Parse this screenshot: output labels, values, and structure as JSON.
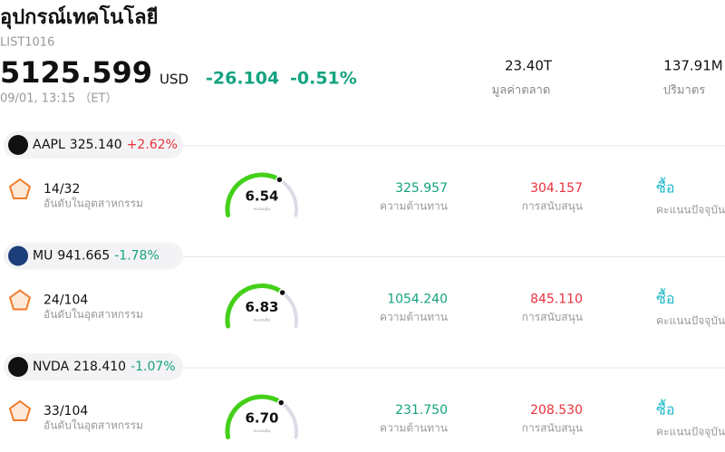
{
  "header": {
    "title": "อุปกรณ์เทคโนโลยี",
    "code": "LIST1016",
    "price": "5125.599",
    "currency": "USD",
    "change": "-26.104",
    "change_percent": "-0.51%",
    "time": "09/01, 13:15 （ET）",
    "stats": [
      {
        "value": "23.40T",
        "label": "มูลค่าตลาด"
      },
      {
        "value": "137.91M",
        "label": "ปริมาตร"
      }
    ]
  },
  "score_range": [
    0,
    10
  ],
  "stocks": [
    {
      "ticker": "AAPL",
      "price": "325.140",
      "change": "+2.62%",
      "rank": "14/32",
      "rank_label": "อันดับในอุตสาหกรรม",
      "score": 6.54,
      "score_label": "คะแนนหุ้น",
      "resistance": "325.957",
      "resistance_label": "ความต้านทาน",
      "support": "304.157",
      "support_label": "การสนับสนุน",
      "rating": "ซื้อ",
      "rating_label": "คะแนนปัจจุบัน"
    },
    {
      "ticker": "MU",
      "price": "941.665",
      "change": "-1.78%",
      "rank": "24/104",
      "rank_label": "อันดับในอุตสาหกรรม",
      "score": 6.83,
      "score_label": "คะแนนหุ้น",
      "resistance": "1054.240",
      "resistance_label": "ความต้านทาน",
      "support": "845.110",
      "support_label": "การสนับสนุน",
      "rating": "ซื้อ",
      "rating_label": "คะแนนปัจจุบัน"
    },
    {
      "ticker": "NVDA",
      "price": "218.410",
      "change": "-1.07%",
      "rank": "33/104",
      "rank_label": "อันดับในอุตสาหกรรม",
      "score": {
        "value": 6.7,
        "label": "6.70"
      },
      "score_label": "คะแนนหุ้น",
      "resistance": "231.750",
      "resistance_label": "ความต้านทาน",
      "support": "208.530",
      "support_label": "การสนับสนุน",
      "rating": "ซื้อ",
      "rating_label": "คะแนนปัจจุบัน"
    }
  ]
}
